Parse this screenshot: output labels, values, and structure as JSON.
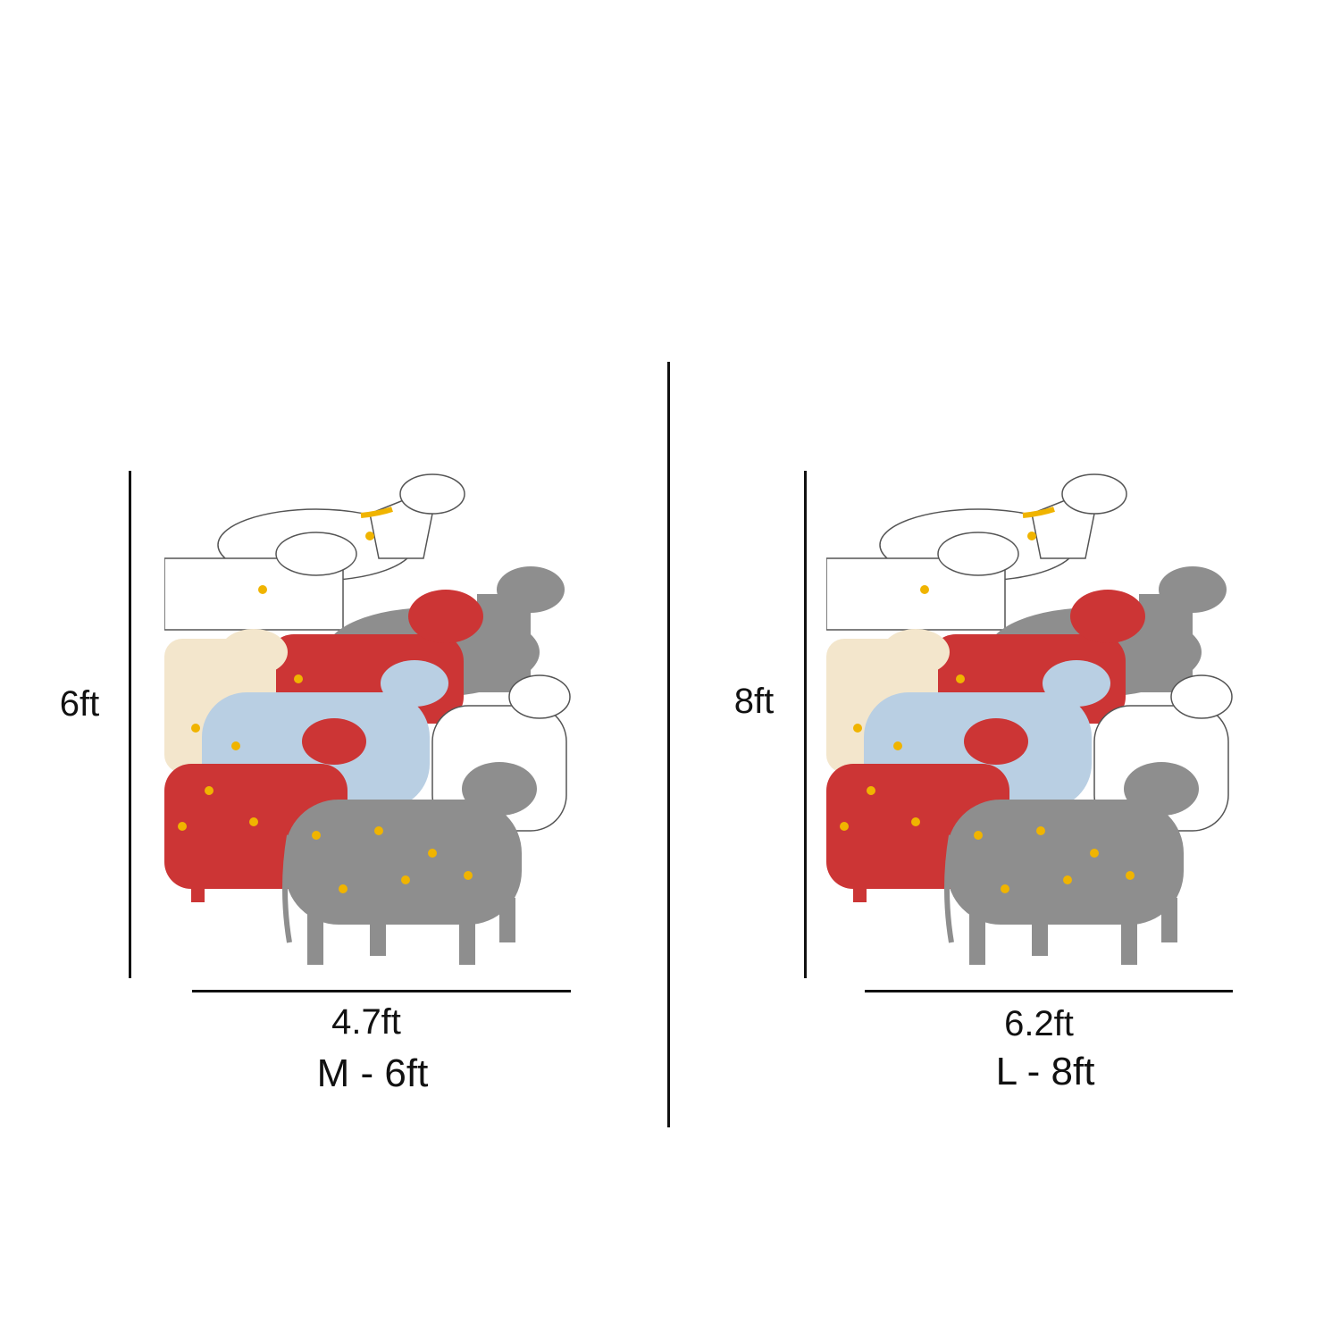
{
  "panels": [
    {
      "height_label": "6ft",
      "width_label": "4.7ft",
      "size_label": "M - 6ft"
    },
    {
      "height_label": "8ft",
      "width_label": "6.2ft",
      "size_label": "L - 8ft"
    }
  ],
  "colors": {
    "line": "#111111",
    "cow_white": "#ffffff",
    "cow_cream": "#f3e6cc",
    "cow_red": "#cc3535",
    "cow_grey": "#8e8e8e",
    "cow_blue": "#b9cfe3",
    "accent_gold": "#f0b400"
  }
}
